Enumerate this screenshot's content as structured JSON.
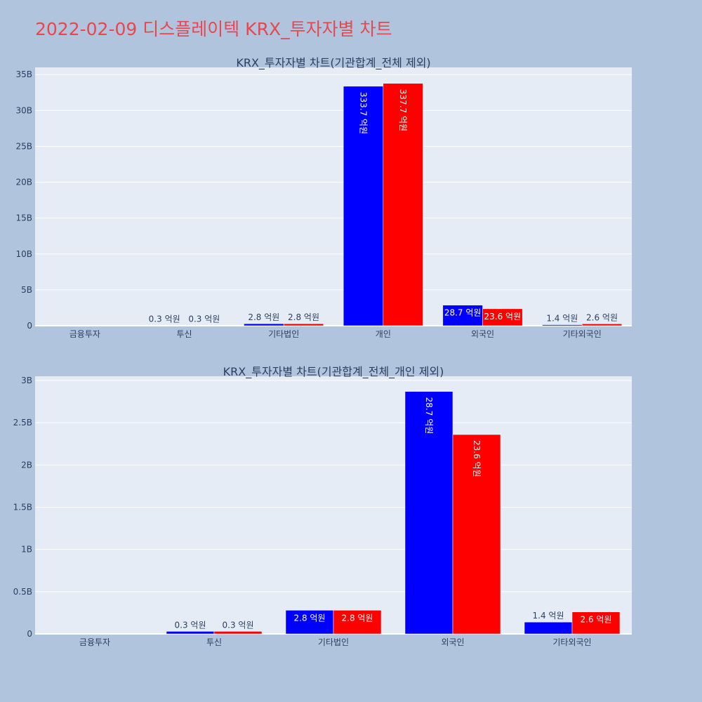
{
  "page": {
    "title": "2022-02-09 디스플레이텍 KRX_투자자별 차트"
  },
  "colors": {
    "page_bg": "#b0c4de",
    "plot_bg": "#e5ecf6",
    "grid": "#ffffff",
    "title": "#e8474d",
    "axis_text": "#2a3f5f",
    "series_blue": "#0000ff",
    "series_red": "#ff0000"
  },
  "chart_data": [
    {
      "type": "bar",
      "title": "KRX_투자자별 차트(기관합계_전체 제외)",
      "categories": [
        "금융투자",
        "투신",
        "기타법인",
        "개인",
        "외국인",
        "기타외국인"
      ],
      "ylim": [
        0,
        36000000000
      ],
      "yticks": [
        0,
        5000000000,
        10000000000,
        15000000000,
        20000000000,
        25000000000,
        30000000000,
        35000000000
      ],
      "ytick_labels": [
        "0",
        "5B",
        "10B",
        "15B",
        "20B",
        "25B",
        "30B",
        "35B"
      ],
      "grid": true,
      "series": [
        {
          "color": "#0000ff",
          "values": [
            0,
            30000000,
            280000000,
            33370000000,
            2870000000,
            140000000
          ],
          "labels": [
            "",
            "0.3 억원",
            "2.8 억원",
            "333.7 억원",
            "28.7 억원",
            "1.4 억원"
          ]
        },
        {
          "color": "#ff0000",
          "values": [
            0,
            30000000,
            280000000,
            33770000000,
            2360000000,
            260000000
          ],
          "labels": [
            "",
            "0.3 억원",
            "2.8 억원",
            "337.7 억원",
            "23.6 억원",
            "2.6 억원"
          ]
        }
      ]
    },
    {
      "type": "bar",
      "title": "KRX_투자자별 차트(기관합계_전체_개인 제외)",
      "categories": [
        "금융투자",
        "투신",
        "기타법인",
        "외국인",
        "기타외국인"
      ],
      "ylim": [
        0,
        3050000000
      ],
      "yticks": [
        0,
        500000000,
        1000000000,
        1500000000,
        2000000000,
        2500000000,
        3000000000
      ],
      "ytick_labels": [
        "0",
        "0.5B",
        "1B",
        "1.5B",
        "2B",
        "2.5B",
        "3B"
      ],
      "grid": true,
      "series": [
        {
          "color": "#0000ff",
          "values": [
            0,
            30000000,
            280000000,
            2870000000,
            140000000
          ],
          "labels": [
            "",
            "0.3 억원",
            "2.8 억원",
            "28.7 억원",
            "1.4 억원"
          ]
        },
        {
          "color": "#ff0000",
          "values": [
            0,
            30000000,
            280000000,
            2360000000,
            260000000
          ],
          "labels": [
            "",
            "0.3 억원",
            "2.8 억원",
            "23.6 억원",
            "2.6 억원"
          ]
        }
      ]
    }
  ]
}
